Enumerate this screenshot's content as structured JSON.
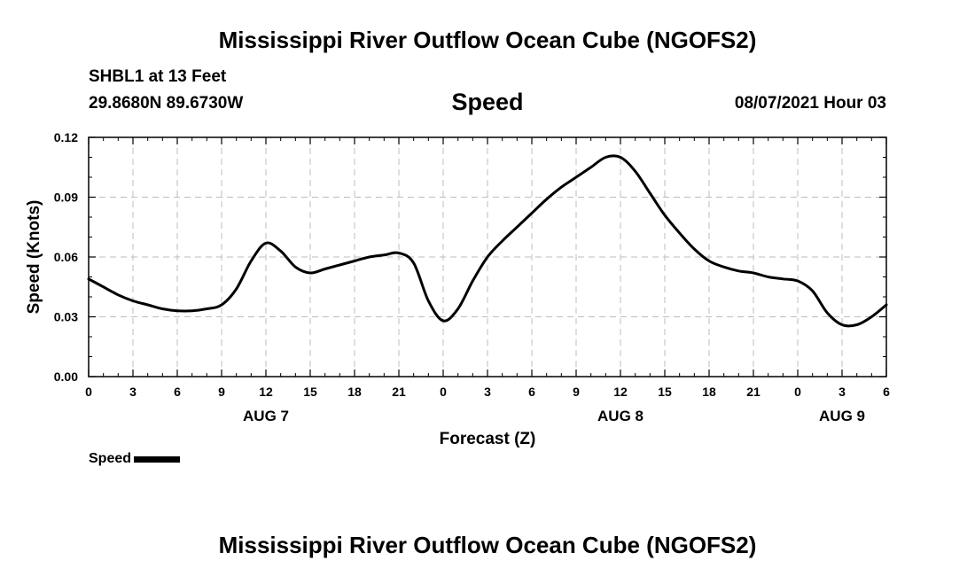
{
  "header": {
    "title": "Mississippi River Outflow Ocean Cube (NGOFS2)",
    "station": "SHBL1 at 13 Feet",
    "coords": "29.8680N  89.6730W",
    "subtitle": "Speed",
    "datetime": "08/07/2021 Hour 03"
  },
  "footer": {
    "title": "Mississippi River Outflow Ocean Cube (NGOFS2)"
  },
  "legend": {
    "label": "Speed",
    "color": "#000000"
  },
  "chart_data": {
    "type": "line",
    "xlabel": "Forecast (Z)",
    "ylabel": "Speed (Knots)",
    "xlim": [
      0,
      54
    ],
    "ylim": [
      0,
      0.12
    ],
    "grid": true,
    "legend_position": "bottom-left",
    "yticks": [
      {
        "value": 0.0,
        "label": "0.00"
      },
      {
        "value": 0.03,
        "label": "0.03"
      },
      {
        "value": 0.06,
        "label": "0.06"
      },
      {
        "value": 0.09,
        "label": "0.09"
      },
      {
        "value": 0.12,
        "label": "0.12"
      }
    ],
    "xticks": [
      {
        "value": 0,
        "label": "0"
      },
      {
        "value": 3,
        "label": "3"
      },
      {
        "value": 6,
        "label": "6"
      },
      {
        "value": 9,
        "label": "9"
      },
      {
        "value": 12,
        "label": "12"
      },
      {
        "value": 15,
        "label": "15"
      },
      {
        "value": 18,
        "label": "18"
      },
      {
        "value": 21,
        "label": "21"
      },
      {
        "value": 24,
        "label": "0"
      },
      {
        "value": 27,
        "label": "3"
      },
      {
        "value": 30,
        "label": "6"
      },
      {
        "value": 33,
        "label": "9"
      },
      {
        "value": 36,
        "label": "12"
      },
      {
        "value": 39,
        "label": "15"
      },
      {
        "value": 42,
        "label": "18"
      },
      {
        "value": 45,
        "label": "21"
      },
      {
        "value": 48,
        "label": "0"
      },
      {
        "value": 51,
        "label": "3"
      },
      {
        "value": 54,
        "label": "6"
      }
    ],
    "date_labels": [
      {
        "value": 12,
        "label": "AUG 7"
      },
      {
        "value": 36,
        "label": "AUG 8"
      },
      {
        "value": 51,
        "label": "AUG 9"
      }
    ],
    "series": [
      {
        "name": "Speed",
        "color": "#000000",
        "x": [
          0,
          1,
          2,
          3,
          4,
          5,
          6,
          7,
          8,
          9,
          10,
          11,
          12,
          13,
          14,
          15,
          16,
          17,
          18,
          19,
          20,
          21,
          22,
          23,
          24,
          25,
          26,
          27,
          28,
          29,
          30,
          31,
          32,
          33,
          34,
          35,
          36,
          37,
          38,
          39,
          40,
          41,
          42,
          43,
          44,
          45,
          46,
          47,
          48,
          49,
          50,
          51,
          52,
          53,
          54
        ],
        "y": [
          0.049,
          0.045,
          0.041,
          0.038,
          0.036,
          0.034,
          0.033,
          0.033,
          0.034,
          0.036,
          0.044,
          0.058,
          0.067,
          0.063,
          0.055,
          0.052,
          0.054,
          0.056,
          0.058,
          0.06,
          0.061,
          0.062,
          0.057,
          0.038,
          0.028,
          0.034,
          0.048,
          0.06,
          0.068,
          0.075,
          0.082,
          0.089,
          0.095,
          0.1,
          0.105,
          0.11,
          0.11,
          0.103,
          0.092,
          0.081,
          0.072,
          0.064,
          0.058,
          0.055,
          0.053,
          0.052,
          0.05,
          0.049,
          0.048,
          0.043,
          0.032,
          0.026,
          0.026,
          0.03,
          0.036
        ]
      }
    ]
  }
}
